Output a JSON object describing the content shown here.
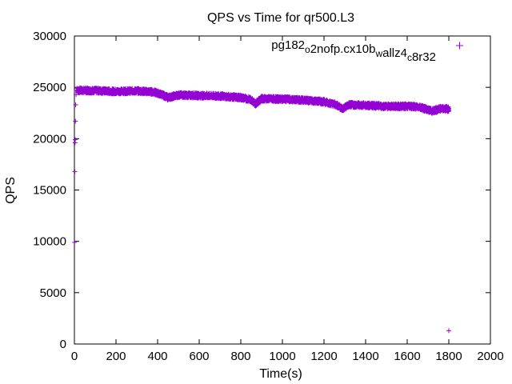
{
  "chart_data": {
    "type": "scatter",
    "title": "QPS vs Time for qr500.L3",
    "xlabel": "Time(s)",
    "ylabel": "QPS",
    "xlim": [
      0,
      2000
    ],
    "ylim": [
      0,
      30000
    ],
    "xticks": [
      "0",
      "200",
      "400",
      "600",
      "800",
      "1000",
      "1200",
      "1400",
      "1600",
      "1800",
      "2000"
    ],
    "yticks": [
      "0",
      "5000",
      "10000",
      "15000",
      "20000",
      "25000",
      "30000"
    ],
    "grid": false,
    "legend_position": "top-right",
    "series": [
      {
        "name_parts": [
          {
            "text": "pg182",
            "sub": false
          },
          {
            "text": "o",
            "sub": true
          },
          {
            "text": "2nofp.cx10b",
            "sub": false
          },
          {
            "text": "w",
            "sub": true
          },
          {
            "text": "allz4",
            "sub": false
          },
          {
            "text": "c",
            "sub": true
          },
          {
            "text": "8r32",
            "sub": false
          }
        ],
        "color": "#9400d3",
        "marker": "plus",
        "outliers": [
          [
            1,
            9900
          ],
          [
            2,
            16800
          ],
          [
            3,
            19600
          ],
          [
            4,
            19900
          ],
          [
            5,
            21700
          ],
          [
            6,
            23300
          ],
          [
            8,
            24300
          ],
          [
            10,
            24700
          ],
          [
            12,
            24900
          ],
          [
            1800,
            1300
          ]
        ],
        "trend": [
          [
            15,
            24700
          ],
          [
            100,
            24680
          ],
          [
            200,
            24600
          ],
          [
            300,
            24650
          ],
          [
            380,
            24550
          ],
          [
            420,
            24300
          ],
          [
            450,
            24000
          ],
          [
            500,
            24250
          ],
          [
            600,
            24200
          ],
          [
            700,
            24150
          ],
          [
            800,
            24000
          ],
          [
            850,
            23800
          ],
          [
            870,
            23400
          ],
          [
            900,
            23900
          ],
          [
            1000,
            23850
          ],
          [
            1100,
            23750
          ],
          [
            1200,
            23600
          ],
          [
            1260,
            23300
          ],
          [
            1290,
            22900
          ],
          [
            1320,
            23300
          ],
          [
            1400,
            23250
          ],
          [
            1500,
            23150
          ],
          [
            1600,
            23150
          ],
          [
            1660,
            23100
          ],
          [
            1700,
            22800
          ],
          [
            1720,
            22700
          ],
          [
            1760,
            22900
          ],
          [
            1800,
            22900
          ]
        ]
      }
    ]
  }
}
